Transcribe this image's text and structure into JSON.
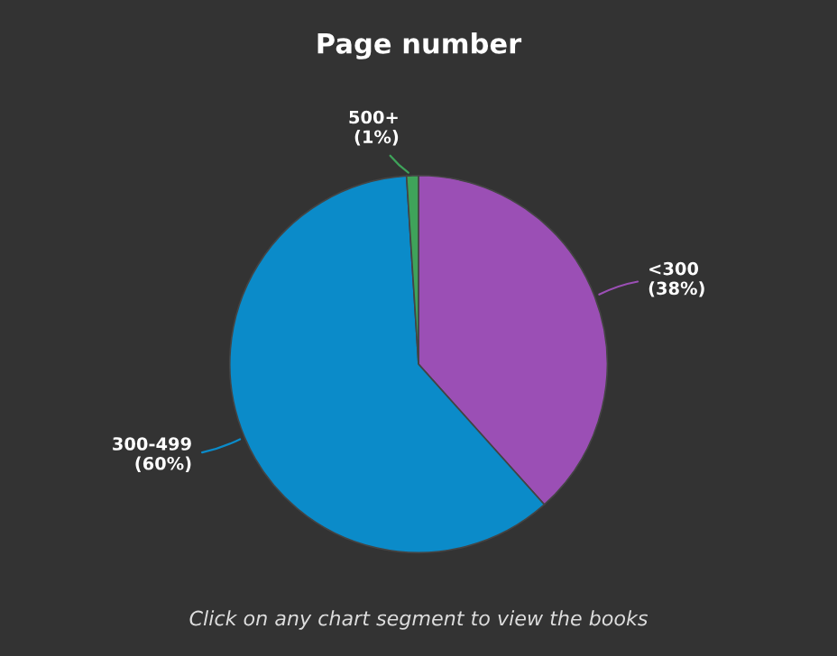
{
  "chart_data": {
    "type": "pie",
    "title": "Page number",
    "categories": [
      "<300",
      "300-499",
      "500+"
    ],
    "values": [
      38,
      60,
      1
    ],
    "value_labels": [
      "(38%)",
      "(60%)",
      "(1%)"
    ],
    "colors": [
      "#9b4fb5",
      "#0b8bc9",
      "#3fa35a"
    ],
    "annotations": [
      "Click on any chart segment to view the books"
    ]
  }
}
